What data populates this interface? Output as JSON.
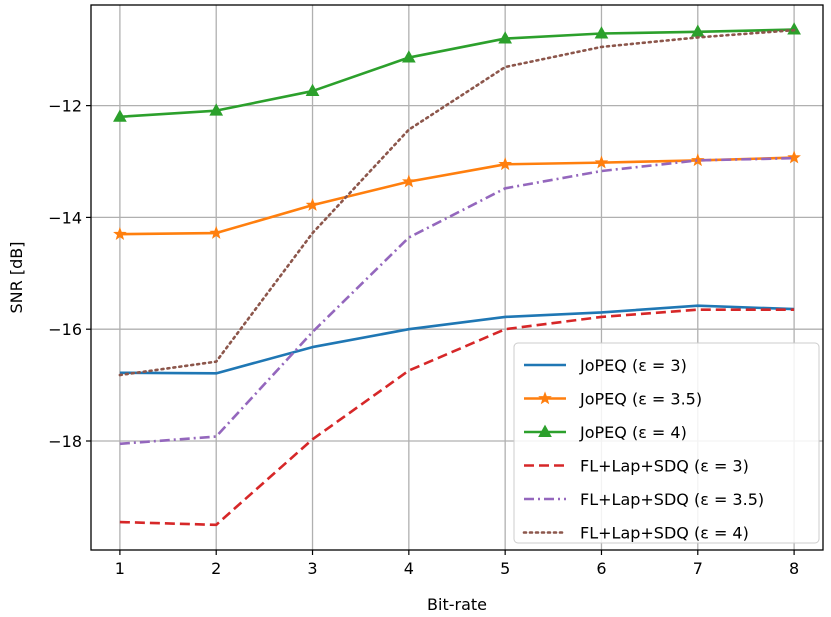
{
  "chart_data": {
    "type": "line",
    "title": "",
    "xlabel": "Bit-rate",
    "ylabel": "SNR [dB]",
    "x": [
      1,
      2,
      3,
      4,
      5,
      6,
      7,
      8
    ],
    "xlim": [
      0.7,
      8.3
    ],
    "ylim": [
      -19.95,
      -10.2
    ],
    "xticks": [
      1,
      2,
      3,
      4,
      5,
      6,
      7,
      8
    ],
    "yticks": [
      -18,
      -16,
      -14,
      -12
    ],
    "ytick_labels": [
      "−18",
      "−16",
      "−14",
      "−12"
    ],
    "grid": true,
    "legend_position": "lower-right",
    "series": [
      {
        "name": "JoPEQ (ε = 3)",
        "color": "#1f77b4",
        "linestyle": "solid",
        "marker": "none",
        "values": [
          -16.78,
          -16.79,
          -16.32,
          -16.0,
          -15.78,
          -15.7,
          -15.58,
          -15.64
        ]
      },
      {
        "name": "JoPEQ (ε = 3.5)",
        "color": "#ff7f0e",
        "linestyle": "solid",
        "marker": "star",
        "values": [
          -14.3,
          -14.28,
          -13.78,
          -13.36,
          -13.05,
          -13.02,
          -12.98,
          -12.93
        ]
      },
      {
        "name": "JoPEQ (ε = 4)",
        "color": "#2ca02c",
        "linestyle": "solid",
        "marker": "triangle-up",
        "values": [
          -12.2,
          -12.09,
          -11.74,
          -11.14,
          -10.8,
          -10.71,
          -10.68,
          -10.64
        ]
      },
      {
        "name": "FL+Lap+SDQ (ε = 3)",
        "color": "#d62728",
        "linestyle": "dashed",
        "marker": "none",
        "values": [
          -19.45,
          -19.5,
          -17.97,
          -16.74,
          -16.0,
          -15.78,
          -15.65,
          -15.65
        ]
      },
      {
        "name": "FL+Lap+SDQ (ε = 3.5)",
        "color": "#9467bd",
        "linestyle": "dashdot",
        "marker": "none",
        "values": [
          -18.05,
          -17.92,
          -16.05,
          -14.36,
          -13.48,
          -13.17,
          -12.98,
          -12.94
        ]
      },
      {
        "name": "FL+Lap+SDQ (ε = 4)",
        "color": "#8c564b",
        "linestyle": "dotted",
        "marker": "none",
        "values": [
          -16.82,
          -16.58,
          -14.28,
          -12.43,
          -11.31,
          -10.95,
          -10.78,
          -10.65
        ]
      }
    ]
  }
}
